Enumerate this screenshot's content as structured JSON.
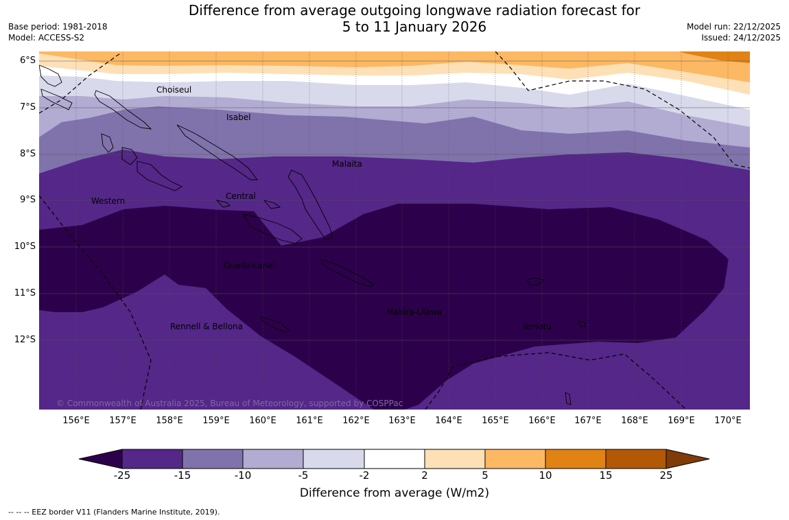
{
  "title": {
    "line1": "Difference from average outgoing longwave radiation forecast for",
    "line2": "5 to 11 January 2026"
  },
  "meta_left": {
    "base_period": "Base period: 1981-2018",
    "model": "Model: ACCESS-S2"
  },
  "meta_right": {
    "model_run": "Model run: 22/12/2025",
    "issued": "Issued: 24/12/2025"
  },
  "map": {
    "lat_labels": [
      "6°S",
      "7°S",
      "8°S",
      "9°S",
      "10°S",
      "11°S",
      "12°S"
    ],
    "lon_labels": [
      "156°E",
      "157°E",
      "158°E",
      "159°E",
      "160°E",
      "161°E",
      "162°E",
      "163°E",
      "164°E",
      "165°E",
      "166°E",
      "167°E",
      "168°E",
      "169°E",
      "170°E"
    ],
    "regions": {
      "choiseul": "Choiseul",
      "isabel": "Isabel",
      "malaita": "Malaita",
      "western": "Western",
      "central": "Central",
      "guadalcanal": "Guadalcanal",
      "makira": "Makira-Ulawa",
      "rennell": "Rennell & Bellona",
      "temotu": "Temotu"
    },
    "copyright": "© Commonwealth of Australia 2025, Bureau of Meteorology, supported by COSPPac"
  },
  "colorbar": {
    "ticks": [
      "-25",
      "-15",
      "-10",
      "-5",
      "-2",
      "2",
      "5",
      "10",
      "15",
      "25"
    ],
    "title": "Difference from average (W/m2)",
    "colors": {
      "below_-25": "#2d004b",
      "-25_-15": "#542788",
      "-15_-10": "#8073ac",
      "-10_-5": "#b2abd2",
      "-5_-2": "#d8daeb",
      "-2_2": "#ffffff",
      "2_5": "#fee0b6",
      "5_10": "#fdb863",
      "10_15": "#e08214",
      "15_25": "#b35806",
      "above_25": "#7f3b08"
    }
  },
  "footnote": "--  --  -- EEZ border V11 (Flanders Marine Institute, 2019)."
}
